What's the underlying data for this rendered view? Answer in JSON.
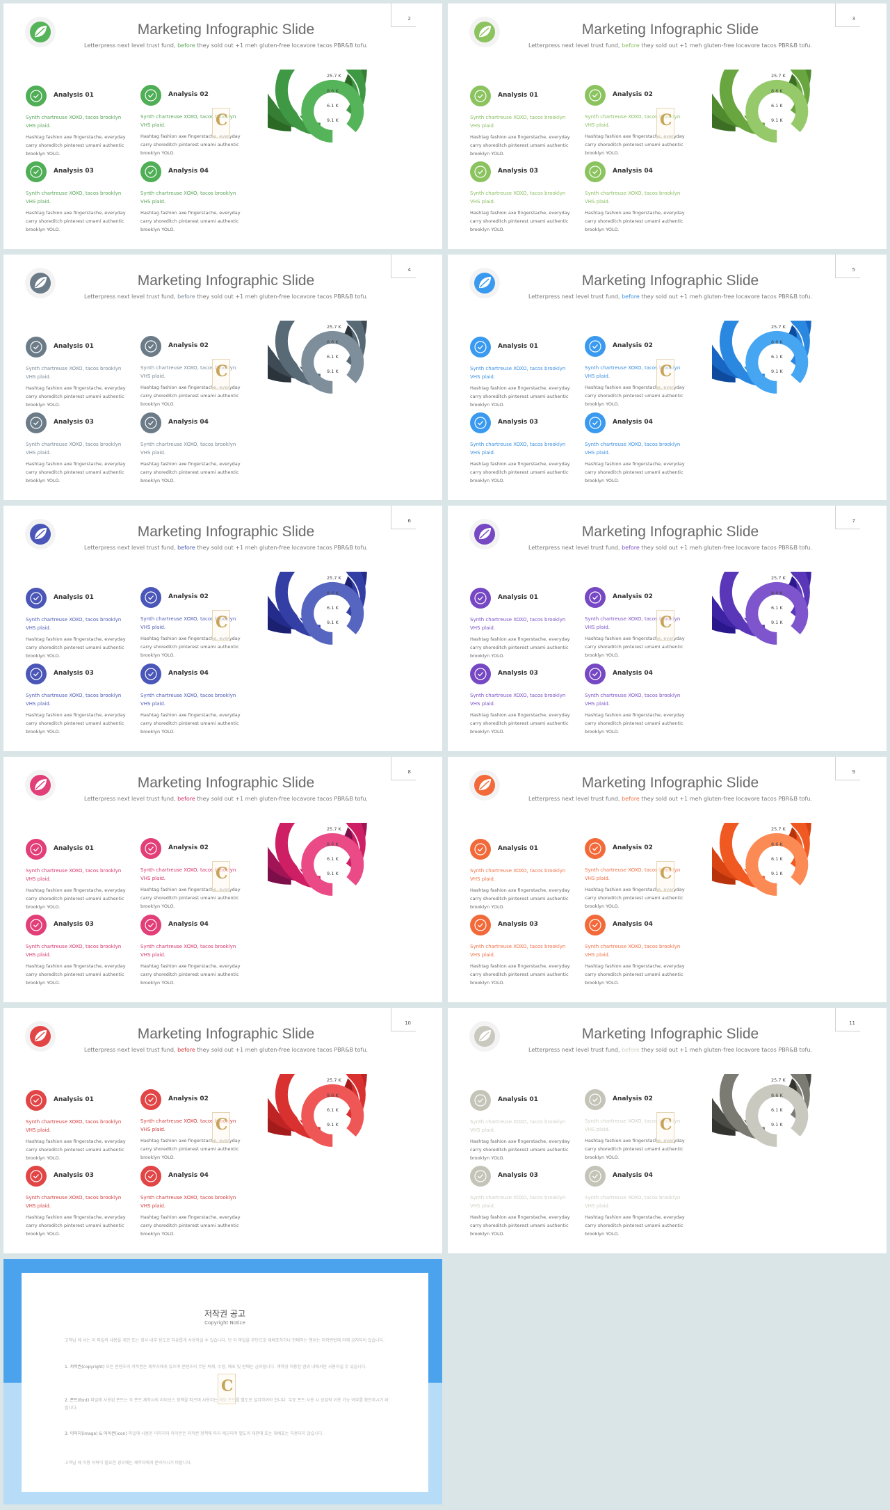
{
  "slide_title": "Marketing Infographic Slide",
  "subtitle_pre": "Letterpress next level trust fund,",
  "subtitle_hl": "before",
  "subtitle_post": "they sold out +1 meh gluten-free locavore tacos PBR&B tofu.",
  "items": [
    {
      "heading": "Analysis 01"
    },
    {
      "heading": "Analysis 02"
    },
    {
      "heading": "Analysis 03"
    },
    {
      "heading": "Analysis 04"
    }
  ],
  "item_tagline": "Synth chartreuse XOXO, tacos brooklyn VHS plaid.",
  "item_body": "Hashtag fashion axe fingerstache, everyday carry shoreditch pinterest umami authentic brooklyn YOLO.",
  "chart_data": {
    "type": "radial-bar",
    "categories": [
      "25.7 K",
      "8.6 K",
      "6.1 K",
      "9.1 K"
    ],
    "tick_labels": [
      "25.7 K",
      "8.6 K",
      "6.1 K",
      "9.1 K"
    ]
  },
  "watermark_letter": "C",
  "slides": [
    {
      "num": "2",
      "palette": [
        "#2a6a24",
        "#357e33",
        "#3f9843",
        "#55b359"
      ],
      "circle": "#4fae56",
      "tag_color": "#5aa65a",
      "logo": "#55b359"
    },
    {
      "num": "3",
      "palette": [
        "#3c6e24",
        "#4f8a2f",
        "#69a640",
        "#95c96a"
      ],
      "circle": "#8bc35f",
      "tag_color": "#8bbf62",
      "logo": "#8bc35f"
    },
    {
      "num": "4",
      "palette": [
        "#2b333b",
        "#3e4b55",
        "#586a76",
        "#7e8f9b"
      ],
      "circle": "#6b7b87",
      "tag_color": "#7a8a96",
      "logo": "#6b7b87"
    },
    {
      "num": "5",
      "palette": [
        "#0e4a9e",
        "#1766c3",
        "#2b88e0",
        "#46a6f2"
      ],
      "circle": "#3a9af0",
      "tag_color": "#3a8fe0",
      "logo": "#3a9af0"
    },
    {
      "num": "6",
      "palette": [
        "#1b2170",
        "#232c8a",
        "#333fa4",
        "#5665c0"
      ],
      "circle": "#4a57b8",
      "tag_color": "#4f5db5",
      "logo": "#4a57b8"
    },
    {
      "num": "7",
      "palette": [
        "#2b178c",
        "#3d23a3",
        "#5a37b8",
        "#7e55cc"
      ],
      "circle": "#7648c4",
      "tag_color": "#7a52c4",
      "logo": "#7648c4"
    },
    {
      "num": "8",
      "palette": [
        "#7c0e4a",
        "#a11557",
        "#cf1f64",
        "#ea4b86"
      ],
      "circle": "#e23e78",
      "tag_color": "#d6336e",
      "logo": "#e23e78"
    },
    {
      "num": "9",
      "palette": [
        "#b8330b",
        "#d84512",
        "#f05a22",
        "#fb8a55"
      ],
      "circle": "#f26a3a",
      "tag_color": "#f07045",
      "logo": "#f26a3a"
    },
    {
      "num": "10",
      "palette": [
        "#a31b1b",
        "#bf2424",
        "#d93030",
        "#ef5656"
      ],
      "circle": "#e14545",
      "tag_color": "#d33c3c",
      "logo": "#e14545"
    },
    {
      "num": "11",
      "palette": [
        "#33332f",
        "#4b4b46",
        "#7b7b73",
        "#c9c9bf"
      ],
      "circle": "#c4c4b8",
      "tag_color": "#cfcfc5",
      "logo": "#c9c9bf"
    }
  ],
  "copyright": {
    "title": "저작권 공고",
    "subtitle": "Copyright Notice",
    "p1": "고객님 께 서는 이 파일의 내용을 개인 또는 회사 내부 용도로 자유롭게 사용하실 수 있습니다. 단 이 파일을 무단으로 재배포하거나 판매하는 행위는 저작권법에 의해 금지되어 있습니다.",
    "p2_head": "1. 저작권(copyright)",
    "p2": "모든 콘텐츠의 저작권은 제작자에게 있으며 콘텐츠의 무단 복제, 수정, 배포 및 판매는 금지됩니다. 계약상 허용된 범위 내에서만 사용하실 수 있습니다.",
    "p3_head": "2. 폰트(font)",
    "p3": "파일에 사용된 폰트는 각 폰트 제작사의 라이선스 정책을 따르며 사용자는 해당 폰트를 별도로 설치하여야 합니다. 무료 폰트 사용 시 상업적 이용 가능 여부를 확인하시기 바랍니다.",
    "p4_head": "3. 이미지(image) & 아이콘(icon)",
    "p4": "파일에 사용된 이미지와 아이콘은 저작권 정책에 따라 제공되며 별도의 재판매 또는 재배포는 허용되지 않습니다.",
    "p5": "고객님 께 이용 허락이 필요한 경우에는 제작자에게 문의하시기 바랍니다."
  }
}
